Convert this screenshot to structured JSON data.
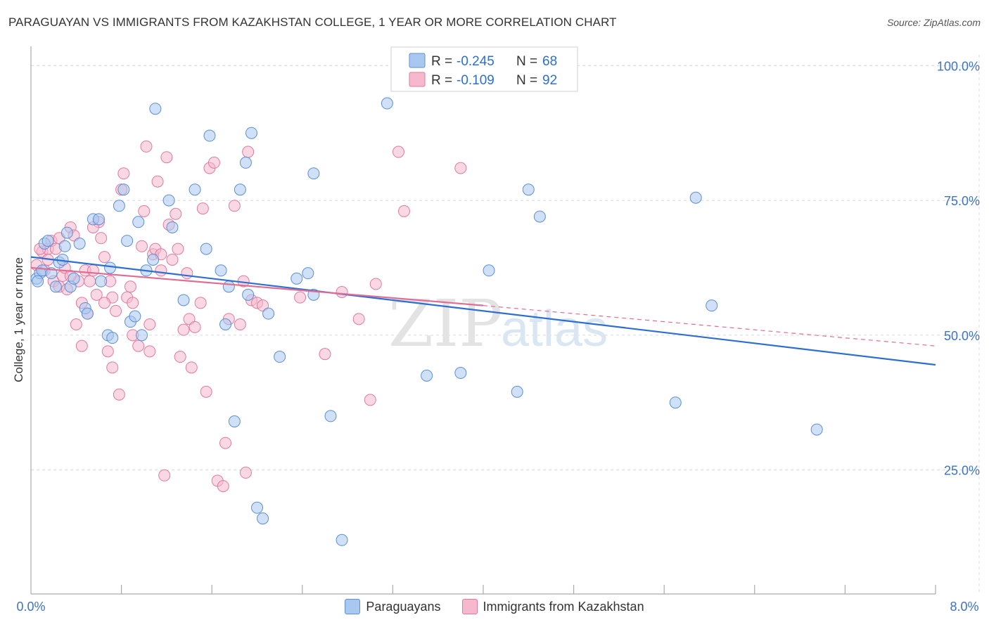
{
  "header": {
    "title": "PARAGUAYAN VS IMMIGRANTS FROM KAZAKHSTAN COLLEGE, 1 YEAR OR MORE CORRELATION CHART",
    "source": "Source: ZipAtlas.com"
  },
  "watermark": {
    "zip": "ZIP",
    "atlas": "atlas"
  },
  "colors": {
    "blue_fill": "#a9c8f0",
    "blue_stroke": "#5b8fd6",
    "blue_line": "#2d6fd0",
    "pink_fill": "#f6b8cc",
    "pink_stroke": "#e07a9e",
    "pink_line": "#e06d93",
    "tick_label": "#3d72c4",
    "grid": "#d9d9d9"
  },
  "stats_legend": {
    "rows": [
      {
        "r_label": "R =",
        "r_value": "-0.245",
        "n_label": "N =",
        "n_value": "68",
        "series": "blue"
      },
      {
        "r_label": "R =",
        "r_value": "-0.109",
        "n_label": "N =",
        "n_value": "92",
        "series": "pink"
      }
    ]
  },
  "bottom_legend": [
    {
      "label": "Paraguayans",
      "series": "blue"
    },
    {
      "label": "Immigrants from Kazakhstan",
      "series": "pink"
    }
  ],
  "chart_data": {
    "type": "scatter",
    "title": "PARAGUAYAN VS IMMIGRANTS FROM KAZAKHSTAN COLLEGE, 1 YEAR OR MORE CORRELATION CHART",
    "xlabel": "",
    "ylabel": "College, 1 year or more",
    "xlim": [
      0,
      8
    ],
    "ylim": [
      2,
      102
    ],
    "x_tick_labels": {
      "left": "0.0%",
      "right": "8.0%"
    },
    "y_ticks": [
      {
        "value": 100,
        "label": "100.0%"
      },
      {
        "value": 75,
        "label": "75.0%"
      },
      {
        "value": 50,
        "label": "50.0%"
      },
      {
        "value": 25,
        "label": "25.0%"
      }
    ],
    "x_minor_ticks": [
      0.8,
      1.6,
      2.4,
      3.2,
      4.0,
      4.8,
      5.6,
      6.4,
      7.2,
      8.0
    ],
    "series": [
      {
        "name": "Paraguayans",
        "color": "blue",
        "trend": {
          "x0": 0,
          "y0": 64.5,
          "x1": 8,
          "y1": 44.5,
          "dashed_to": null
        },
        "points": [
          [
            0.05,
            60.5
          ],
          [
            0.08,
            61.5
          ],
          [
            0.1,
            62
          ],
          [
            0.12,
            67
          ],
          [
            0.15,
            67.5
          ],
          [
            0.18,
            61.5
          ],
          [
            0.22,
            59
          ],
          [
            0.25,
            63.5
          ],
          [
            0.3,
            66.5
          ],
          [
            0.32,
            69
          ],
          [
            0.35,
            59
          ],
          [
            0.38,
            60.5
          ],
          [
            0.43,
            67
          ],
          [
            0.48,
            55
          ],
          [
            0.5,
            54
          ],
          [
            0.55,
            71.5
          ],
          [
            0.6,
            71.5
          ],
          [
            0.62,
            60
          ],
          [
            0.68,
            50
          ],
          [
            0.7,
            62.5
          ],
          [
            0.72,
            49.5
          ],
          [
            0.78,
            74
          ],
          [
            0.82,
            77
          ],
          [
            0.85,
            67.5
          ],
          [
            0.88,
            52.5
          ],
          [
            0.92,
            53.5
          ],
          [
            0.95,
            71
          ],
          [
            0.98,
            50
          ],
          [
            1.02,
            62
          ],
          [
            1.08,
            64
          ],
          [
            1.1,
            92
          ],
          [
            1.22,
            75
          ],
          [
            1.25,
            70
          ],
          [
            1.35,
            56.5
          ],
          [
            1.45,
            77
          ],
          [
            1.55,
            66
          ],
          [
            1.58,
            87
          ],
          [
            1.68,
            62
          ],
          [
            1.72,
            52
          ],
          [
            1.75,
            59
          ],
          [
            1.8,
            34
          ],
          [
            1.85,
            77
          ],
          [
            1.9,
            82
          ],
          [
            1.92,
            57.5
          ],
          [
            1.95,
            87.5
          ],
          [
            2.0,
            18
          ],
          [
            2.05,
            16
          ],
          [
            2.1,
            54
          ],
          [
            2.2,
            46
          ],
          [
            2.35,
            60.5
          ],
          [
            2.45,
            61.5
          ],
          [
            2.5,
            57.5
          ],
          [
            2.5,
            80
          ],
          [
            2.65,
            35
          ],
          [
            2.75,
            12
          ],
          [
            3.15,
            93
          ],
          [
            3.5,
            42.5
          ],
          [
            3.8,
            43
          ],
          [
            4.05,
            62
          ],
          [
            4.3,
            39.5
          ],
          [
            4.4,
            77
          ],
          [
            4.5,
            72
          ],
          [
            5.7,
            37.5
          ],
          [
            5.88,
            75.5
          ],
          [
            6.02,
            55.5
          ],
          [
            6.95,
            32.5
          ],
          [
            0.06,
            60
          ],
          [
            0.28,
            64
          ]
        ]
      },
      {
        "name": "Immigrants from Kazakhstan",
        "color": "pink",
        "trend": {
          "x0": 0,
          "y0": 62.5,
          "x1": 4.0,
          "y1": 55.5,
          "dashed_to": {
            "x": 8,
            "y": 48
          }
        },
        "points": [
          [
            0.05,
            63
          ],
          [
            0.1,
            65.5
          ],
          [
            0.12,
            62
          ],
          [
            0.15,
            66
          ],
          [
            0.18,
            67.5
          ],
          [
            0.2,
            60
          ],
          [
            0.22,
            66
          ],
          [
            0.25,
            59
          ],
          [
            0.28,
            61
          ],
          [
            0.3,
            62.5
          ],
          [
            0.32,
            58.5
          ],
          [
            0.35,
            70
          ],
          [
            0.38,
            68.5
          ],
          [
            0.4,
            52
          ],
          [
            0.42,
            60
          ],
          [
            0.45,
            56
          ],
          [
            0.48,
            62
          ],
          [
            0.5,
            54
          ],
          [
            0.52,
            60
          ],
          [
            0.55,
            62
          ],
          [
            0.58,
            57.5
          ],
          [
            0.6,
            71
          ],
          [
            0.62,
            68
          ],
          [
            0.65,
            64.5
          ],
          [
            0.68,
            47
          ],
          [
            0.7,
            60
          ],
          [
            0.72,
            57
          ],
          [
            0.75,
            54.5
          ],
          [
            0.78,
            39
          ],
          [
            0.8,
            77
          ],
          [
            0.82,
            80
          ],
          [
            0.85,
            57
          ],
          [
            0.88,
            59
          ],
          [
            0.9,
            56
          ],
          [
            0.95,
            48
          ],
          [
            0.98,
            66.5
          ],
          [
            1.0,
            73
          ],
          [
            1.02,
            85
          ],
          [
            1.05,
            47
          ],
          [
            1.08,
            65
          ],
          [
            1.1,
            66
          ],
          [
            1.12,
            78.5
          ],
          [
            1.15,
            65
          ],
          [
            1.18,
            24
          ],
          [
            1.2,
            83
          ],
          [
            1.22,
            70.5
          ],
          [
            1.25,
            64
          ],
          [
            1.28,
            72.5
          ],
          [
            1.3,
            66
          ],
          [
            1.32,
            46
          ],
          [
            1.35,
            51
          ],
          [
            1.38,
            61.5
          ],
          [
            1.4,
            53
          ],
          [
            1.42,
            44
          ],
          [
            1.45,
            51.5
          ],
          [
            1.5,
            56
          ],
          [
            1.52,
            73.5
          ],
          [
            1.55,
            39.5
          ],
          [
            1.58,
            81
          ],
          [
            1.62,
            82
          ],
          [
            1.65,
            23
          ],
          [
            1.7,
            22
          ],
          [
            1.72,
            30
          ],
          [
            1.75,
            53
          ],
          [
            1.8,
            74
          ],
          [
            1.85,
            52
          ],
          [
            1.88,
            60
          ],
          [
            1.9,
            24.5
          ],
          [
            1.92,
            84
          ],
          [
            1.95,
            56.5
          ],
          [
            2.0,
            56
          ],
          [
            2.05,
            55.5
          ],
          [
            2.38,
            57
          ],
          [
            2.6,
            46.5
          ],
          [
            2.75,
            58
          ],
          [
            2.9,
            53
          ],
          [
            3.0,
            38
          ],
          [
            3.05,
            59.5
          ],
          [
            3.25,
            84
          ],
          [
            3.3,
            73
          ],
          [
            3.8,
            81
          ],
          [
            0.15,
            64
          ],
          [
            0.08,
            66
          ],
          [
            0.45,
            48
          ],
          [
            0.25,
            68
          ],
          [
            0.55,
            70
          ],
          [
            1.15,
            62
          ],
          [
            0.65,
            56
          ],
          [
            0.72,
            44
          ],
          [
            1.05,
            52
          ],
          [
            0.35,
            61
          ],
          [
            0.9,
            50
          ]
        ]
      }
    ]
  }
}
